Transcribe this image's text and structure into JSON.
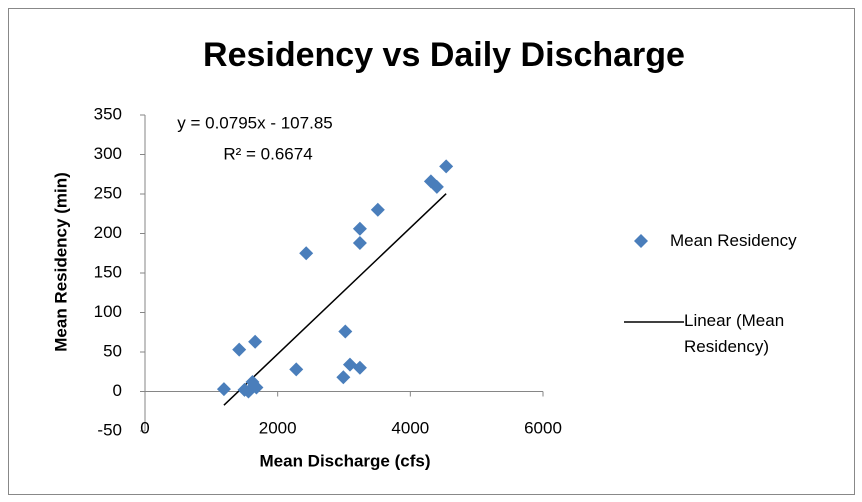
{
  "chart_data": {
    "type": "scatter",
    "title": "Residency vs  Daily Discharge",
    "x_label": "Mean Discharge  (cfs)",
    "y_label": "Mean Residency  (min)",
    "xlim": [
      0,
      6000
    ],
    "xticks": [
      0,
      2000,
      4000,
      6000
    ],
    "ylim": [
      -50,
      350
    ],
    "yticks": [
      -50,
      0,
      50,
      100,
      150,
      200,
      250,
      300,
      350
    ],
    "grid": false,
    "series": [
      {
        "name": "Mean Residency",
        "color": "#4a7ebb",
        "x": [
          1190,
          1420,
          1660,
          1500,
          1620,
          1680,
          1560,
          2280,
          2430,
          3020,
          2990,
          3090,
          3240,
          3240,
          3240,
          3510,
          4310,
          4400,
          4540
        ],
        "values": [
          3,
          53,
          63,
          2,
          12,
          5,
          0,
          28,
          175,
          76,
          18,
          34,
          30,
          206,
          188,
          230,
          266,
          259,
          285
        ]
      }
    ],
    "trendline": {
      "name": "Linear (Mean Residency)",
      "equation": "y = 0.0795x - 107.85",
      "r_squared": "R² = 0.6674",
      "color": "#000000"
    }
  }
}
